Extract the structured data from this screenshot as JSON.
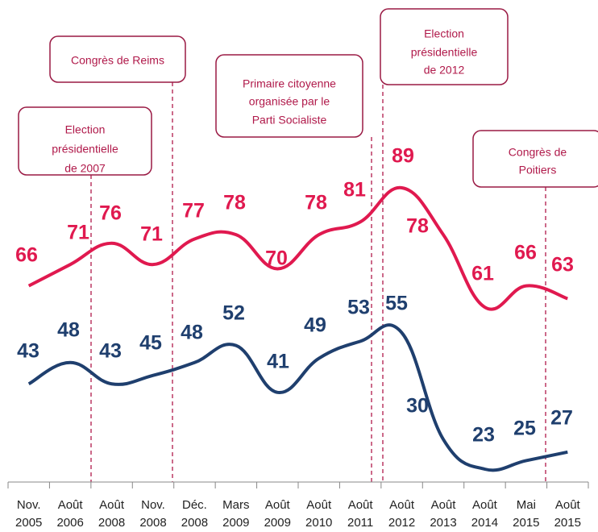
{
  "chart_data": {
    "type": "line",
    "categories": [
      "Nov. 2005",
      "Août 2006",
      "Août 2008",
      "Nov. 2008",
      "Déc. 2008",
      "Mars 2009",
      "Août 2009",
      "Août 2010",
      "Août 2011",
      "Août 2012",
      "Août 2013",
      "Août 2014",
      "Mai 2015",
      "Août 2015"
    ],
    "series": [
      {
        "color": "#e0194f",
        "values": [
          66,
          71,
          76,
          71,
          77,
          78,
          70,
          78,
          81,
          89,
          78,
          61,
          66,
          63
        ]
      },
      {
        "color": "#1f3f6e",
        "values": [
          43,
          48,
          43,
          45,
          48,
          52,
          41,
          49,
          53,
          55,
          30,
          23,
          25,
          27
        ]
      }
    ],
    "annotations": [
      {
        "lines": [
          "Election",
          "présidentielle",
          "de 2007"
        ]
      },
      {
        "lines": [
          "Congrès de Reims"
        ]
      },
      {
        "lines": [
          "Primaire citoyenne",
          "organisée par le",
          "Parti Socialiste"
        ]
      },
      {
        "lines": [
          "Election",
          "présidentielle",
          "de 2012"
        ]
      },
      {
        "lines": [
          "Congrès de",
          "Poitiers"
        ]
      }
    ]
  }
}
